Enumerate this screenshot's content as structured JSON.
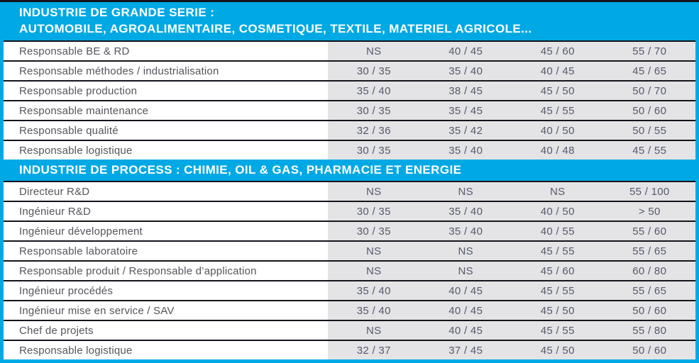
{
  "colors": {
    "accent": "#00a9e4",
    "divider": "#14141c",
    "data_band_bg": "#e4e4e6",
    "label_text": "#54565c",
    "value_text": "#555a6b",
    "header_text": "#ffffff"
  },
  "table": {
    "sections": [
      {
        "title_lines": [
          "INDUSTRIE DE GRANDE SERIE :",
          "AUTOMOBILE, AGROALIMENTAIRE, COSMETIQUE, TEXTILE, MATERIEL AGRICOLE..."
        ],
        "rows": [
          {
            "label": "Responsable BE & RD",
            "values": [
              "NS",
              "40 / 45",
              "45 / 60",
              "55 / 70"
            ]
          },
          {
            "label": "Responsable méthodes / industrialisation",
            "values": [
              "30 / 35",
              "35 / 40",
              "40 / 45",
              "45 / 65"
            ]
          },
          {
            "label": "Responsable production",
            "values": [
              "35 / 40",
              "38 / 45",
              "45 / 50",
              "50 / 70"
            ]
          },
          {
            "label": "Responsable maintenance",
            "values": [
              "30 / 35",
              "35 / 45",
              "45 / 55",
              "50 / 60"
            ]
          },
          {
            "label": "Responsable qualité",
            "values": [
              "32 / 36",
              "35 / 42",
              "40 / 50",
              "50 / 55"
            ]
          },
          {
            "label": "Responsable logistique",
            "values": [
              "30 / 35",
              "35 / 40",
              "40 / 48",
              "45 / 55"
            ]
          }
        ]
      },
      {
        "title_lines": [
          "INDUSTRIE DE PROCESS : CHIMIE, OIL & GAS, PHARMACIE ET ENERGIE"
        ],
        "rows": [
          {
            "label": "Directeur R&D",
            "values": [
              "NS",
              "NS",
              "NS",
              "55 / 100"
            ]
          },
          {
            "label": "Ingénieur R&D",
            "values": [
              "30 / 35",
              "35 / 40",
              "40 / 50",
              "> 50"
            ]
          },
          {
            "label": "Ingénieur développement",
            "values": [
              "30 / 35",
              "35 / 40",
              "40 / 55",
              "55 / 60"
            ]
          },
          {
            "label": "Responsable laboratoire",
            "values": [
              "NS",
              "NS",
              "45 / 55",
              "55 / 65"
            ]
          },
          {
            "label": "Responsable produit / Responsable d’application",
            "values": [
              "NS",
              "NS",
              "45 / 60",
              "60 / 80"
            ]
          },
          {
            "label": "Ingénieur procédés",
            "values": [
              "35 / 40",
              "40 / 45",
              "45 / 55",
              "55 / 65"
            ]
          },
          {
            "label": "Ingénieur mise en service / SAV",
            "values": [
              "35 / 40",
              "40 / 45",
              "45 / 50",
              "50 / 60"
            ]
          },
          {
            "label": "Chef de projets",
            "values": [
              "NS",
              "40 / 45",
              "45 / 55",
              "55 / 80"
            ]
          },
          {
            "label": "Responsable logistique",
            "values": [
              "32 / 37",
              "37 / 45",
              "45 / 50",
              "50 / 60"
            ]
          }
        ]
      }
    ]
  }
}
